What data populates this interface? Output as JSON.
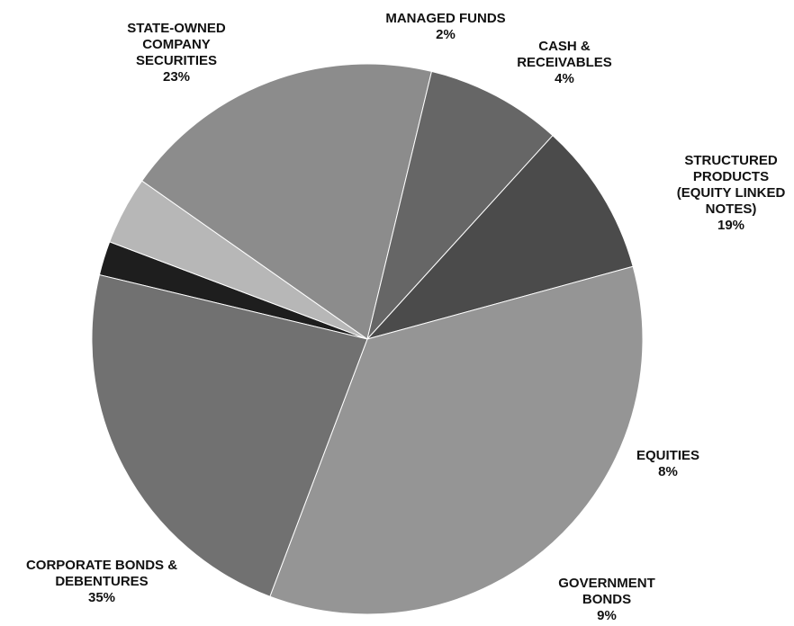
{
  "chart_data": {
    "type": "pie",
    "slices": [
      {
        "name": "MANAGED FUNDS",
        "lines": [
          "MANAGED FUNDS"
        ],
        "value": 2,
        "pct_label": "2%",
        "color": "#1e1e1e"
      },
      {
        "name": "CASH & RECEIVABLES",
        "lines": [
          "CASH &",
          "RECEIVABLES"
        ],
        "value": 4,
        "pct_label": "4%",
        "color": "#b7b7b7"
      },
      {
        "name": "STRUCTURED PRODUCTS (EQUITY LINKED NOTES)",
        "lines": [
          "STRUCTURED",
          "PRODUCTS",
          "(EQUITY LINKED",
          "NOTES)"
        ],
        "value": 19,
        "pct_label": "19%",
        "color": "#8c8c8c"
      },
      {
        "name": "EQUITIES",
        "lines": [
          "EQUITIES"
        ],
        "value": 8,
        "pct_label": "8%",
        "color": "#666666"
      },
      {
        "name": "GOVERNMENT BONDS",
        "lines": [
          "GOVERNMENT",
          "BONDS"
        ],
        "value": 9,
        "pct_label": "9%",
        "color": "#4b4b4b"
      },
      {
        "name": "CORPORATE BONDS & DEBENTURES",
        "lines": [
          "CORPORATE BONDS &",
          "DEBENTURES"
        ],
        "value": 35,
        "pct_label": "35%",
        "color": "#959595"
      },
      {
        "name": "STATE-OWNED COMPANY SECURITIES",
        "lines": [
          "STATE-OWNED",
          "COMPANY",
          "SECURITIES"
        ],
        "value": 23,
        "pct_label": "23%",
        "color": "#717171"
      }
    ],
    "legend": "none"
  }
}
